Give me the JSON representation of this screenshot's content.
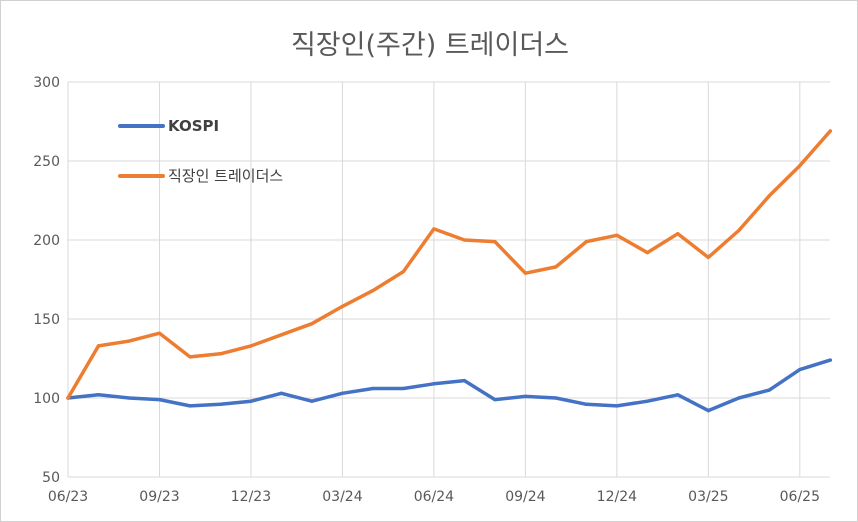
{
  "chart_data": {
    "type": "line",
    "title": "직장인(주간) 트레이더스",
    "xlabel": "",
    "ylabel": "",
    "ylim": [
      50,
      300
    ],
    "yticks": [
      50,
      100,
      150,
      200,
      250,
      300
    ],
    "xticks": [
      "06/23",
      "09/23",
      "12/23",
      "03/24",
      "06/24",
      "09/24",
      "12/24",
      "03/25",
      "06/25"
    ],
    "grid": true,
    "legend_position": "top-left",
    "series": [
      {
        "name": "KOSPI",
        "color": "#4472c4",
        "x": [
          "06/23",
          "07/23",
          "08/23",
          "09/23",
          "10/23",
          "11/23",
          "12/23",
          "01/24",
          "02/24",
          "03/24",
          "04/24",
          "05/24",
          "06/24",
          "07/24",
          "08/24",
          "09/24",
          "10/24",
          "11/24",
          "12/24",
          "01/25",
          "02/25",
          "03/25",
          "04/25",
          "05/25",
          "06/25",
          "07/25"
        ],
        "values": [
          100,
          102,
          100,
          99,
          95,
          96,
          98,
          103,
          98,
          103,
          106,
          106,
          109,
          111,
          99,
          101,
          100,
          96,
          95,
          98,
          102,
          92,
          100,
          105,
          118,
          124
        ]
      },
      {
        "name": "직장인 트레이더스",
        "color": "#ed7d31",
        "x": [
          "06/23",
          "07/23",
          "08/23",
          "09/23",
          "10/23",
          "11/23",
          "12/23",
          "01/24",
          "02/24",
          "03/24",
          "04/24",
          "05/24",
          "06/24",
          "07/24",
          "08/24",
          "09/24",
          "10/24",
          "11/24",
          "12/24",
          "01/25",
          "02/25",
          "03/25",
          "04/25",
          "05/25",
          "06/25",
          "07/25"
        ],
        "values": [
          100,
          133,
          136,
          141,
          126,
          128,
          133,
          140,
          147,
          158,
          168,
          180,
          207,
          200,
          199,
          179,
          183,
          199,
          203,
          192,
          204,
          189,
          206,
          228,
          247,
          269
        ]
      }
    ]
  }
}
